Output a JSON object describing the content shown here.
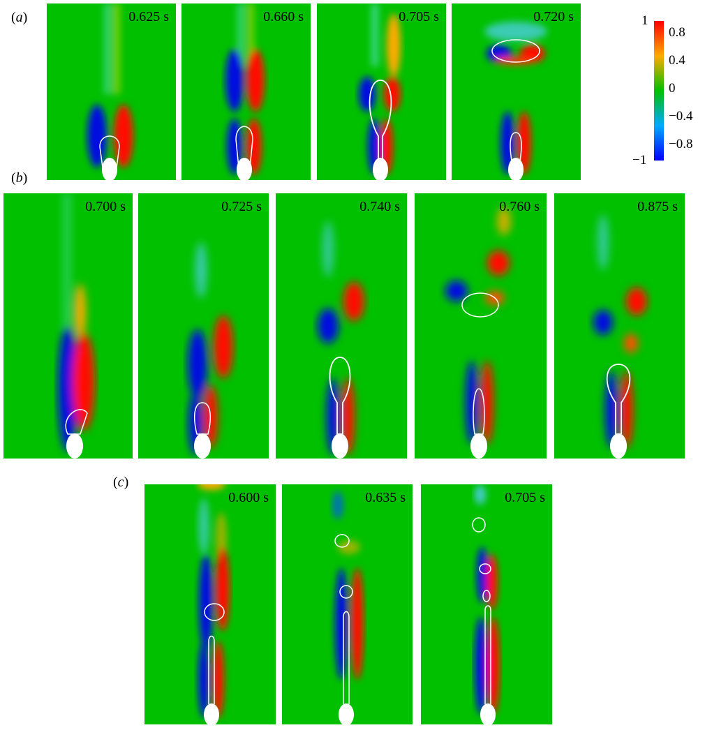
{
  "panels": {
    "a": {
      "label_open": "(",
      "label_letter": "a",
      "label_close": ")",
      "frames": [
        {
          "time": "0.625 s"
        },
        {
          "time": "0.660 s"
        },
        {
          "time": "0.705 s"
        },
        {
          "time": "0.720 s"
        }
      ]
    },
    "b": {
      "label_open": "(",
      "label_letter": "b",
      "label_close": ")",
      "frames": [
        {
          "time": "0.700 s"
        },
        {
          "time": "0.725 s"
        },
        {
          "time": "0.740 s"
        },
        {
          "time": "0.760 s"
        },
        {
          "time": "0.875 s"
        }
      ]
    },
    "c": {
      "label_open": "(",
      "label_letter": "c",
      "label_close": ")",
      "frames": [
        {
          "time": "0.600 s"
        },
        {
          "time": "0.635 s"
        },
        {
          "time": "0.705 s"
        }
      ]
    }
  },
  "colorbar": {
    "max_label": "1",
    "min_label": "−1",
    "ticks": [
      "0.8",
      "0.4",
      "0",
      "−0.4",
      "−0.8"
    ],
    "colors": {
      "top": "#ff0000",
      "upper": "#ffaa00",
      "mid": "#00c000",
      "lower": "#00aaff",
      "bottom": "#0000ff"
    }
  }
}
